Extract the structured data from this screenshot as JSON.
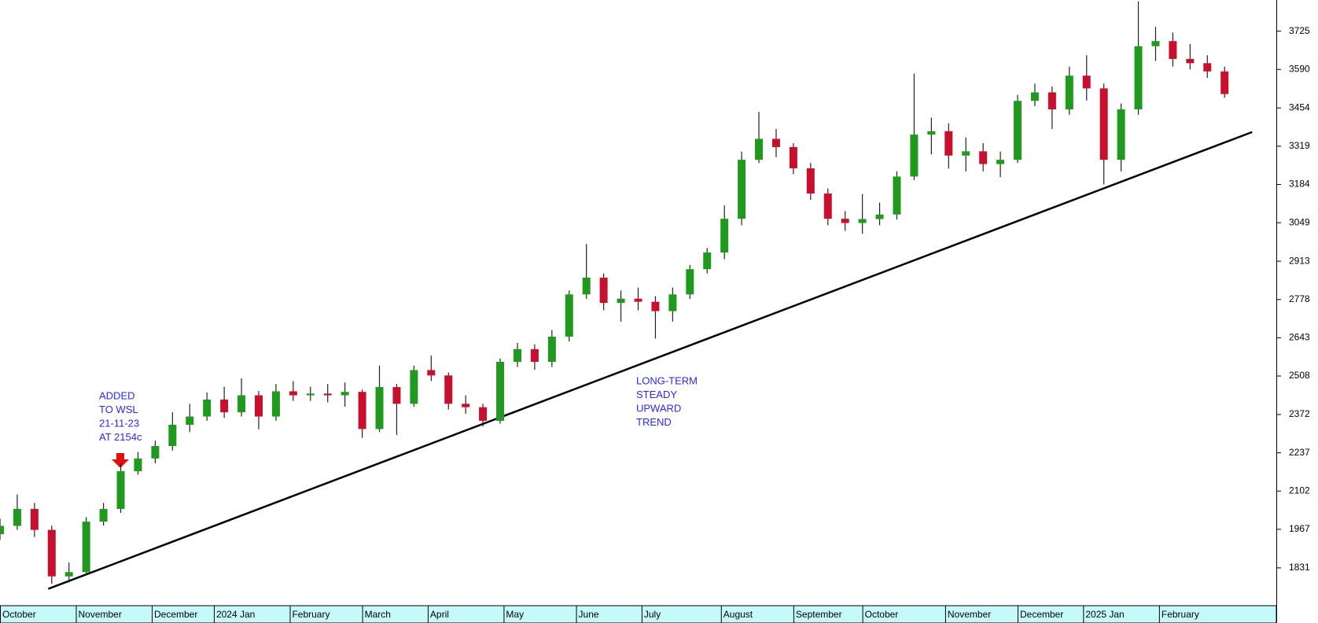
{
  "chart_data": {
    "type": "candlestick",
    "up_color": "#1f9a1f",
    "down_color": "#c8102e",
    "x": [
      0,
      5,
      10,
      15,
      20,
      25,
      30,
      35,
      40,
      45,
      50,
      55,
      60,
      65,
      70,
      75,
      80,
      85,
      90,
      95,
      100,
      105,
      110,
      115,
      120,
      125,
      130,
      135,
      140,
      145,
      150,
      155,
      160,
      165,
      170,
      175,
      180,
      185,
      190,
      195,
      200,
      205,
      210,
      215,
      220,
      225,
      230,
      235,
      240,
      245,
      250,
      255,
      260,
      265,
      270,
      275,
      280,
      285,
      290,
      295,
      300,
      305,
      310,
      315,
      320,
      325,
      330,
      335,
      340,
      345,
      350,
      355
    ],
    "open": [
      1950,
      1979,
      2039,
      1965,
      1801,
      1816,
      1994,
      2039,
      2172,
      2217,
      2261,
      2336,
      2365,
      2425,
      2380,
      2440,
      2365,
      2454,
      2440,
      2446,
      2440,
      2452,
      2321,
      2469,
      2410,
      2529,
      2510,
      2410,
      2398,
      2350,
      2558,
      2603,
      2558,
      2647,
      2796,
      2855,
      2766,
      2781,
      2770,
      2737,
      2796,
      2885,
      2944,
      3063,
      3271,
      3345,
      3316,
      3241,
      3152,
      3063,
      3048,
      3062,
      3078,
      3212,
      3360,
      3372,
      3286,
      3301,
      3256,
      3271,
      3479,
      3509,
      3449,
      3568,
      3523,
      3271,
      3449,
      3672,
      3690,
      3627,
      3612,
      3583
    ],
    "high": [
      2005,
      2090,
      2060,
      1980,
      1850,
      2010,
      2060,
      2200,
      2240,
      2280,
      2380,
      2410,
      2450,
      2470,
      2500,
      2455,
      2480,
      2490,
      2470,
      2480,
      2485,
      2460,
      2545,
      2480,
      2545,
      2580,
      2520,
      2440,
      2410,
      2570,
      2625,
      2620,
      2670,
      2810,
      2974,
      2870,
      2810,
      2820,
      2790,
      2820,
      2900,
      2960,
      3110,
      3300,
      3440,
      3380,
      3330,
      3260,
      3170,
      3090,
      3150,
      3120,
      3230,
      3575,
      3420,
      3400,
      3350,
      3330,
      3300,
      3500,
      3540,
      3530,
      3600,
      3640,
      3540,
      3470,
      3830,
      3740,
      3720,
      3680,
      3640,
      3600
    ],
    "low": [
      1930,
      1965,
      1940,
      1775,
      1780,
      1805,
      1980,
      2025,
      2160,
      2200,
      2245,
      2310,
      2350,
      2360,
      2365,
      2320,
      2350,
      2420,
      2420,
      2415,
      2400,
      2290,
      2310,
      2300,
      2400,
      2490,
      2390,
      2375,
      2330,
      2340,
      2540,
      2530,
      2540,
      2630,
      2780,
      2740,
      2700,
      2740,
      2640,
      2700,
      2780,
      2870,
      2920,
      3040,
      3260,
      3280,
      3220,
      3130,
      3040,
      3020,
      3010,
      3040,
      3060,
      3200,
      3290,
      3240,
      3230,
      3230,
      3210,
      3260,
      3460,
      3380,
      3430,
      3480,
      3184,
      3230,
      3430,
      3620,
      3600,
      3590,
      3560,
      3490
    ],
    "close": [
      1979,
      2039,
      1965,
      1801,
      1816,
      1994,
      2039,
      2172,
      2217,
      2261,
      2336,
      2365,
      2425,
      2380,
      2440,
      2365,
      2454,
      2440,
      2446,
      2440,
      2452,
      2321,
      2469,
      2410,
      2529,
      2510,
      2410,
      2398,
      2350,
      2558,
      2603,
      2558,
      2647,
      2796,
      2855,
      2766,
      2781,
      2770,
      2737,
      2796,
      2885,
      2944,
      3063,
      3271,
      3345,
      3316,
      3241,
      3152,
      3063,
      3048,
      3062,
      3078,
      3212,
      3360,
      3372,
      3286,
      3301,
      3256,
      3271,
      3479,
      3509,
      3449,
      3568,
      3523,
      3271,
      3449,
      3672,
      3690,
      3627,
      3612,
      3583,
      3503
    ],
    "xlim": [
      0,
      370
    ],
    "xticks": [
      {
        "value": 0,
        "label": "October"
      },
      {
        "value": 22,
        "label": "November"
      },
      {
        "value": 44,
        "label": "December"
      },
      {
        "value": 62,
        "label": "2024 Jan"
      },
      {
        "value": 84,
        "label": "February"
      },
      {
        "value": 105,
        "label": "March"
      },
      {
        "value": 124,
        "label": "April"
      },
      {
        "value": 146,
        "label": "May"
      },
      {
        "value": 167,
        "label": "June"
      },
      {
        "value": 186,
        "label": "July"
      },
      {
        "value": 209,
        "label": "August"
      },
      {
        "value": 230,
        "label": "September"
      },
      {
        "value": 250,
        "label": "October"
      },
      {
        "value": 274,
        "label": "November"
      },
      {
        "value": 295,
        "label": "December"
      },
      {
        "value": 314,
        "label": "2025 Jan"
      },
      {
        "value": 336,
        "label": "February"
      }
    ],
    "ylim": [
      1703,
      3835
    ],
    "yticks": [
      1831,
      1967,
      2102,
      2237,
      2372,
      2508,
      2643,
      2778,
      2913,
      3049,
      3184,
      3319,
      3454,
      3590,
      3725
    ],
    "trendline": {
      "x": [
        14,
        363
      ],
      "y": [
        1757,
        3369
      ]
    },
    "annotations": [
      {
        "lines": [
          "ADDED",
          "TO WSL",
          "21-11-23",
          "AT 2154c"
        ]
      },
      {
        "lines": [
          "LONG-TERM",
          "STEADY",
          "UPWARD",
          "TREND"
        ]
      }
    ]
  }
}
